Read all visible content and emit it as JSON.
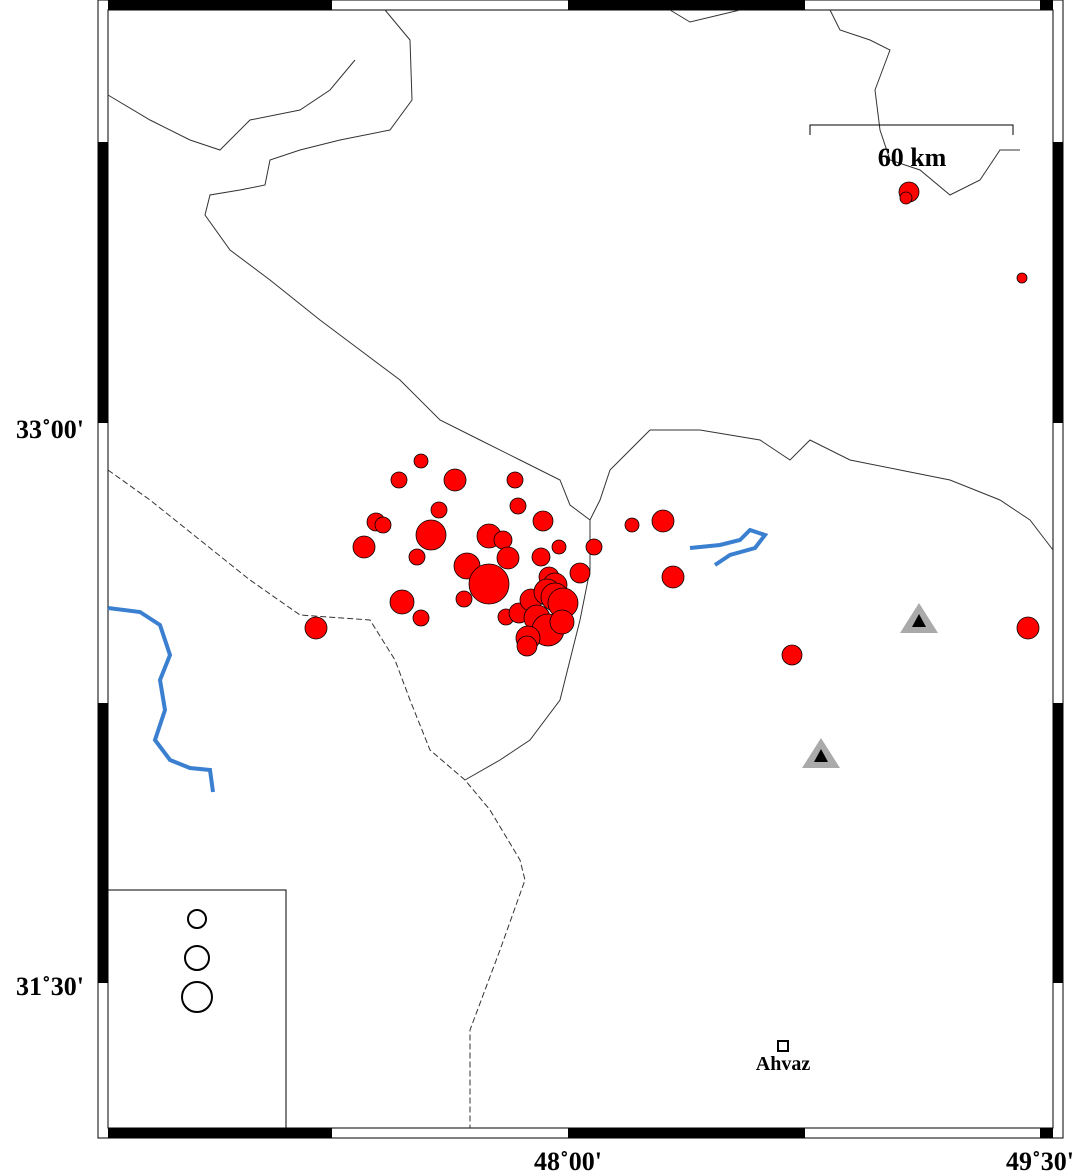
{
  "map": {
    "scale_label": "60 km",
    "city": "Ahvaz",
    "lat_labels": [
      "33˚00'",
      "31˚30'"
    ],
    "lon_labels": [
      "48˚00'",
      "49˚30'"
    ]
  }
}
